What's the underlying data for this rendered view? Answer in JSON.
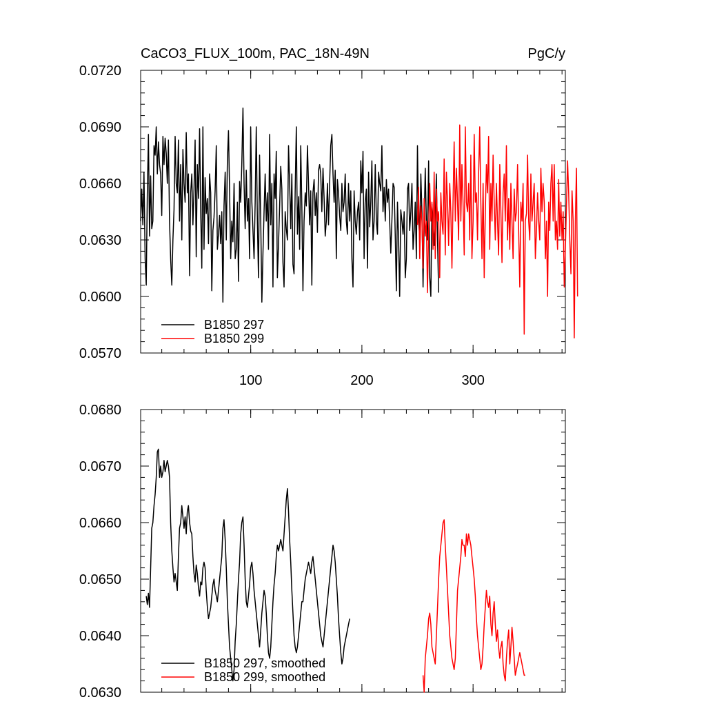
{
  "colors": {
    "series_297": "#000000",
    "series_299": "#ff0000",
    "background": "#ffffff"
  },
  "chart_data": [
    {
      "type": "line",
      "title": "CaCO3_FLUX_100m, PAC_18N-49N",
      "units": "PgC/y",
      "xlim": [
        1,
        383
      ],
      "ylim": [
        0.057,
        0.072
      ],
      "x_ticks": [
        100,
        200,
        300
      ],
      "x_tick_labels": [
        "100",
        "200",
        "300"
      ],
      "y_ticks": [
        0.057,
        0.06,
        0.063,
        0.066,
        0.069,
        0.072
      ],
      "y_tick_labels": [
        "0.0570",
        "0.0600",
        "0.0630",
        "0.0660",
        "0.0690",
        "0.0720"
      ],
      "legend_position": "bottom-left",
      "grid": false,
      "series": [
        {
          "name": "B1850 297",
          "color": "#000000",
          "x_start": 1,
          "values": [
            0.064,
            0.0657,
            0.0638,
            0.0666,
            0.062,
            0.0606,
            0.0655,
            0.0686,
            0.0632,
            0.0664,
            0.0636,
            0.064,
            0.068,
            0.0675,
            0.069,
            0.0665,
            0.0682,
            0.067,
            0.0665,
            0.0643,
            0.0685,
            0.067,
            0.0684,
            0.0676,
            0.066,
            0.0683,
            0.064,
            0.062,
            0.0606,
            0.063,
            0.0646,
            0.0685,
            0.066,
            0.0655,
            0.0683,
            0.064,
            0.067,
            0.063,
            0.0678,
            0.066,
            0.065,
            0.0687,
            0.0655,
            0.0665,
            0.0611,
            0.0655,
            0.0665,
            0.0638,
            0.0657,
            0.0683,
            0.0621,
            0.067,
            0.0652,
            0.0689,
            0.0645,
            0.0615,
            0.069,
            0.0625,
            0.0663,
            0.0644,
            0.0652,
            0.0628,
            0.0665,
            0.0655,
            0.0603,
            0.0635,
            0.0642,
            0.0656,
            0.068,
            0.0625,
            0.0633,
            0.0643,
            0.0628,
            0.0645,
            0.0597,
            0.0648,
            0.0666,
            0.063,
            0.0672,
            0.0688,
            0.0656,
            0.062,
            0.064,
            0.0629,
            0.066,
            0.062,
            0.0625,
            0.065,
            0.0608,
            0.0661,
            0.065,
            0.067,
            0.07,
            0.066,
            0.0636,
            0.0667,
            0.064,
            0.0652,
            0.062,
            0.069,
            0.065,
            0.0635,
            0.062,
            0.065,
            0.069,
            0.064,
            0.061,
            0.0675,
            0.064,
            0.0597,
            0.0623,
            0.0645,
            0.0665,
            0.064,
            0.0655,
            0.0625,
            0.0686,
            0.0638,
            0.066,
            0.0605,
            0.0665,
            0.0652,
            0.0677,
            0.061,
            0.0628,
            0.0648,
            0.0669,
            0.0657,
            0.0618,
            0.0605,
            0.0645,
            0.0636,
            0.063,
            0.068,
            0.066,
            0.0636,
            0.0665,
            0.0617,
            0.0612,
            0.0655,
            0.069,
            0.0633,
            0.0653,
            0.0625,
            0.068,
            0.0648,
            0.0603,
            0.064,
            0.0655,
            0.0648,
            0.068,
            0.066,
            0.0638,
            0.0656,
            0.0606,
            0.0655,
            0.0662,
            0.0643,
            0.0655,
            0.0634,
            0.0667,
            0.067,
            0.0665,
            0.0645,
            0.0668,
            0.0652,
            0.0632,
            0.064,
            0.066,
            0.0638,
            0.066,
            0.068,
            0.0686,
            0.0665,
            0.065,
            0.0667,
            0.062,
            0.0662,
            0.0655,
            0.0643,
            0.0635,
            0.066,
            0.0645,
            0.065,
            0.0665,
            0.064,
            0.0633,
            0.066,
            0.064,
            0.0656,
            0.062,
            0.0605,
            0.0656,
            0.064,
            0.0633,
            0.0645,
            0.065,
            0.063,
            0.0672,
            0.0655,
            0.0677,
            0.062,
            0.065,
            0.0657,
            0.0615,
            0.0666,
            0.0637,
            0.065,
            0.0672,
            0.063,
            0.064,
            0.067,
            0.064,
            0.0633,
            0.0666,
            0.066,
            0.0656,
            0.068,
            0.0645,
            0.0658,
            0.064,
            0.0662,
            0.065,
            0.0657,
            0.064,
            0.0623,
            0.064,
            0.066,
            0.0658,
            0.0632,
            0.0603,
            0.065,
            0.063,
            0.06,
            0.0646,
            0.064,
            0.0633,
            0.0645,
            0.061,
            0.062,
            0.0657,
            0.066,
            0.0635,
            0.0645,
            0.066,
            0.0625,
            0.0635,
            0.065,
            0.062,
            0.068,
            0.064,
            0.0632,
            0.0665,
            0.0645,
            0.0605,
            0.064,
            0.0668,
            0.064,
            0.063,
            0.0672,
            0.061,
            0.06,
            0.0649,
            0.064,
            0.0627,
            0.064,
            0.0665,
            0.063,
            0.0602
          ]
        },
        {
          "name": "B1850 299",
          "color": "#ff0000",
          "x_start": 250,
          "values": [
            0.0638,
            0.0658,
            0.062,
            0.0648,
            0.064,
            0.0615,
            0.0652,
            0.0632,
            0.064,
            0.0602,
            0.0635,
            0.066,
            0.064,
            0.065,
            0.0625,
            0.0666,
            0.062,
            0.0657,
            0.064,
            0.0645,
            0.061,
            0.0655,
            0.064,
            0.0633,
            0.0673,
            0.0622,
            0.0666,
            0.065,
            0.0627,
            0.066,
            0.0645,
            0.0615,
            0.065,
            0.0682,
            0.064,
            0.0668,
            0.065,
            0.063,
            0.0691,
            0.064,
            0.067,
            0.065,
            0.0622,
            0.069,
            0.065,
            0.0645,
            0.066,
            0.063,
            0.0675,
            0.062,
            0.064,
            0.0686,
            0.065,
            0.0655,
            0.063,
            0.0665,
            0.069,
            0.065,
            0.062,
            0.066,
            0.061,
            0.0644,
            0.067,
            0.0655,
            0.0685,
            0.0625,
            0.066,
            0.064,
            0.0675,
            0.065,
            0.063,
            0.066,
            0.064,
            0.0622,
            0.067,
            0.0645,
            0.0618,
            0.0655,
            0.0665,
            0.064,
            0.068,
            0.063,
            0.0652,
            0.0625,
            0.066,
            0.064,
            0.062,
            0.0657,
            0.064,
            0.0645,
            0.067,
            0.0635,
            0.0605,
            0.065,
            0.064,
            0.066,
            0.058,
            0.064,
            0.0644,
            0.0675,
            0.064,
            0.063,
            0.0665,
            0.064,
            0.065,
            0.066,
            0.062,
            0.0635,
            0.0655,
            0.064,
            0.063,
            0.0668,
            0.0645,
            0.066,
            0.065,
            0.062,
            0.064,
            0.06,
            0.065,
            0.0635,
            0.066,
            0.067,
            0.064,
            0.067,
            0.063,
            0.064,
            0.0625,
            0.0662,
            0.0632,
            0.065,
            0.063,
            0.0645,
            0.0605,
            0.0625,
            0.0648,
            0.0672,
            0.0655,
            0.063,
            0.0612,
            0.0656,
            0.064,
            0.0578,
            0.064,
            0.0668,
            0.06
          ]
        }
      ]
    },
    {
      "type": "line",
      "title": "",
      "xlim": [
        1,
        383
      ],
      "ylim": [
        0.063,
        0.068
      ],
      "x_ticks": [
        100,
        200,
        300
      ],
      "y_ticks": [
        0.063,
        0.064,
        0.065,
        0.066,
        0.067,
        0.068
      ],
      "y_tick_labels": [
        "0.0630",
        "0.0640",
        "0.0650",
        "0.0660",
        "0.0670",
        "0.0680"
      ],
      "legend_position": "bottom-left",
      "grid": false,
      "series": [
        {
          "name": "B1850 297, smoothed",
          "color": "#000000",
          "x_start": 6,
          "values": [
            0.0647,
            0.06455,
            0.06475,
            0.0645,
            0.0652,
            0.0659,
            0.066,
            0.0663,
            0.0665,
            0.0668,
            0.06725,
            0.0673,
            0.0668,
            0.067,
            0.0668,
            0.0669,
            0.0671,
            0.0669,
            0.067,
            0.0671,
            0.067,
            0.0668,
            0.066,
            0.0655,
            0.0652,
            0.06495,
            0.0651,
            0.06495,
            0.0648,
            0.0654,
            0.0659,
            0.066,
            0.0663,
            0.0661,
            0.0659,
            0.0661,
            0.0658,
            0.0662,
            0.0663,
            0.066,
            0.06585,
            0.0658,
            0.0654,
            0.0651,
            0.06495,
            0.06525,
            0.0651,
            0.06485,
            0.0647,
            0.06495,
            0.0649,
            0.0652,
            0.0653,
            0.0652,
            0.0648,
            0.0645,
            0.0643,
            0.0644,
            0.0645,
            0.0647,
            0.0649,
            0.065,
            0.0648,
            0.0647,
            0.0646,
            0.0648,
            0.065,
            0.0652,
            0.0654,
            0.0659,
            0.06605,
            0.0657,
            0.0652,
            0.0646,
            0.0642,
            0.0638,
            0.0636,
            0.0634,
            0.0632,
            0.0634,
            0.0639,
            0.0642,
            0.0646,
            0.065,
            0.0653,
            0.0658,
            0.066,
            0.0661,
            0.0656,
            0.065,
            0.0646,
            0.0645,
            0.0647,
            0.0649,
            0.0652,
            0.0653,
            0.0651,
            0.0648,
            0.0646,
            0.0644,
            0.0642,
            0.064,
            0.0638,
            0.0641,
            0.0644,
            0.0646,
            0.0648,
            0.0647,
            0.0644,
            0.064,
            0.0637,
            0.0636,
            0.0638,
            0.0642,
            0.0646,
            0.0649,
            0.0651,
            0.0654,
            0.0656,
            0.0655,
            0.0656,
            0.0657,
            0.0656,
            0.0655,
            0.0658,
            0.0661,
            0.0664,
            0.0666,
            0.0662,
            0.0657,
            0.0653,
            0.0648,
            0.0644,
            0.064,
            0.0638,
            0.0637,
            0.0638,
            0.064,
            0.0642,
            0.0644,
            0.0646,
            0.0646,
            0.0648,
            0.065,
            0.0651,
            0.0652,
            0.0653,
            0.0652,
            0.0651,
            0.0653,
            0.0654,
            0.0652,
            0.065,
            0.0648,
            0.0646,
            0.0644,
            0.0642,
            0.064,
            0.0639,
            0.0638,
            0.064,
            0.0642,
            0.0644,
            0.0646,
            0.0648,
            0.065,
            0.0652,
            0.0654,
            0.0656,
            0.0655,
            0.0653,
            0.065,
            0.0647,
            0.0643,
            0.064,
            0.0637,
            0.0635,
            0.0636,
            0.0638,
            0.0639,
            0.064,
            0.0641,
            0.0642,
            0.0643
          ]
        },
        {
          "name": "B1850 299, smoothed",
          "color": "#ff0000",
          "x_start": 255,
          "values": [
            0.0633,
            0.063,
            0.0636,
            0.0638,
            0.064,
            0.0643,
            0.0644,
            0.0642,
            0.0638,
            0.0637,
            0.0636,
            0.0635,
            0.064,
            0.0645,
            0.065,
            0.0654,
            0.0656,
            0.0658,
            0.066,
            0.06605,
            0.0656,
            0.0652,
            0.0648,
            0.0644,
            0.064,
            0.0638,
            0.0636,
            0.0635,
            0.0634,
            0.0636,
            0.0642,
            0.0648,
            0.065,
            0.0652,
            0.0654,
            0.0657,
            0.0656,
            0.0656,
            0.0654,
            0.0658,
            0.0656,
            0.0658,
            0.0657,
            0.0656,
            0.0654,
            0.0652,
            0.065,
            0.0647,
            0.0643,
            0.064,
            0.0638,
            0.0636,
            0.0634,
            0.0635,
            0.0638,
            0.0642,
            0.0645,
            0.0648,
            0.0646,
            0.0645,
            0.0647,
            0.0642,
            0.064,
            0.0644,
            0.0646,
            0.0642,
            0.0639,
            0.0641,
            0.0638,
            0.0636,
            0.0638,
            0.0639,
            0.0635,
            0.0633,
            0.0632,
            0.0636,
            0.0639,
            0.0641,
            0.0635,
            0.0638,
            0.06415,
            0.0639,
            0.0636,
            0.0633,
            0.0634,
            0.0635,
            0.0636,
            0.0637,
            0.0636,
            0.0635,
            0.0634,
            0.0633,
            0.0633
          ]
        }
      ]
    }
  ]
}
